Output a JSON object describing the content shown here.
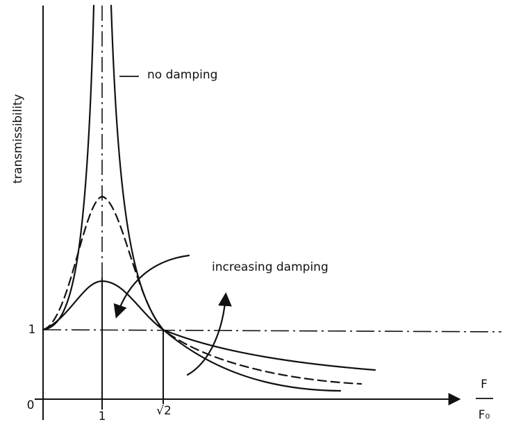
{
  "axis_label_y": "transmissibility",
  "annotations": {
    "no_damping": "no damping",
    "increasing_damping": "increasing damping"
  },
  "x_axis": {
    "label_numerator": "F",
    "label_denominator": "F₀",
    "ticks": [
      "0",
      "1",
      "√2"
    ]
  },
  "y_axis": {
    "ticks": [
      "1"
    ]
  }
}
